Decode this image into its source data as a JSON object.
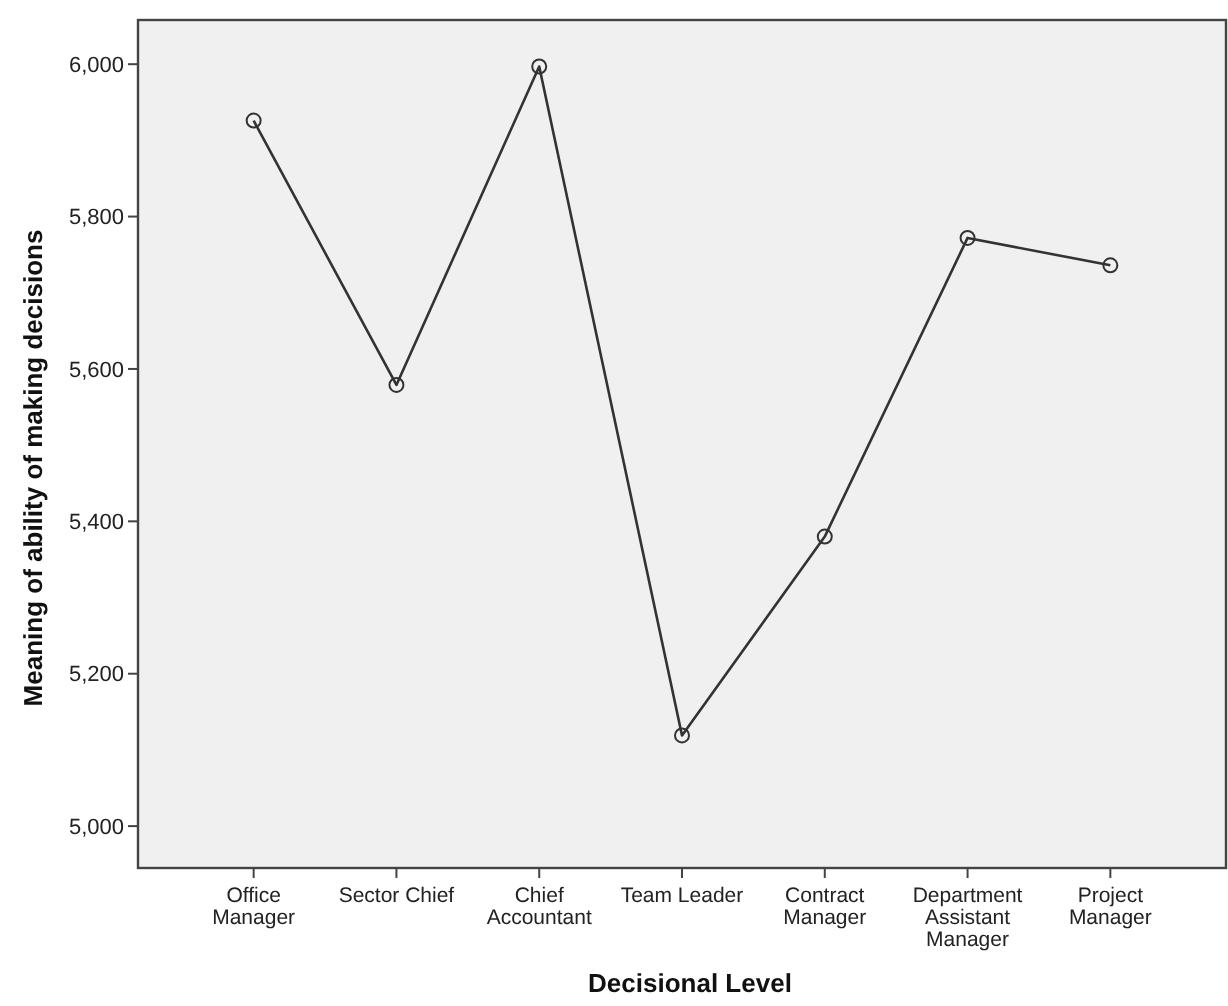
{
  "chart_data": {
    "type": "line",
    "xlabel": "Decisional Level",
    "ylabel": "Meaning of ability of making decisions",
    "categories": [
      "Office\nManager",
      "Sector Chief",
      "Chief\nAccountant",
      "Team Leader",
      "Contract\nManager",
      "Department\nAssistant\nManager",
      "Project\nManager"
    ],
    "series": [
      {
        "color": "#333333",
        "values": [
          5926,
          5579,
          5997,
          5119,
          5380,
          5772,
          5736
        ]
      }
    ],
    "ylim": [
      4945,
      6058
    ],
    "yticks": [
      {
        "value": 5000,
        "label": "5,000"
      },
      {
        "value": 5200,
        "label": "5,200"
      },
      {
        "value": 5400,
        "label": "5,400"
      },
      {
        "value": 5600,
        "label": "5,600"
      },
      {
        "value": 5800,
        "label": "5,800"
      },
      {
        "value": 6000,
        "label": "6,000"
      }
    ],
    "marker": "circle",
    "line_style": "solid",
    "grid": false
  }
}
